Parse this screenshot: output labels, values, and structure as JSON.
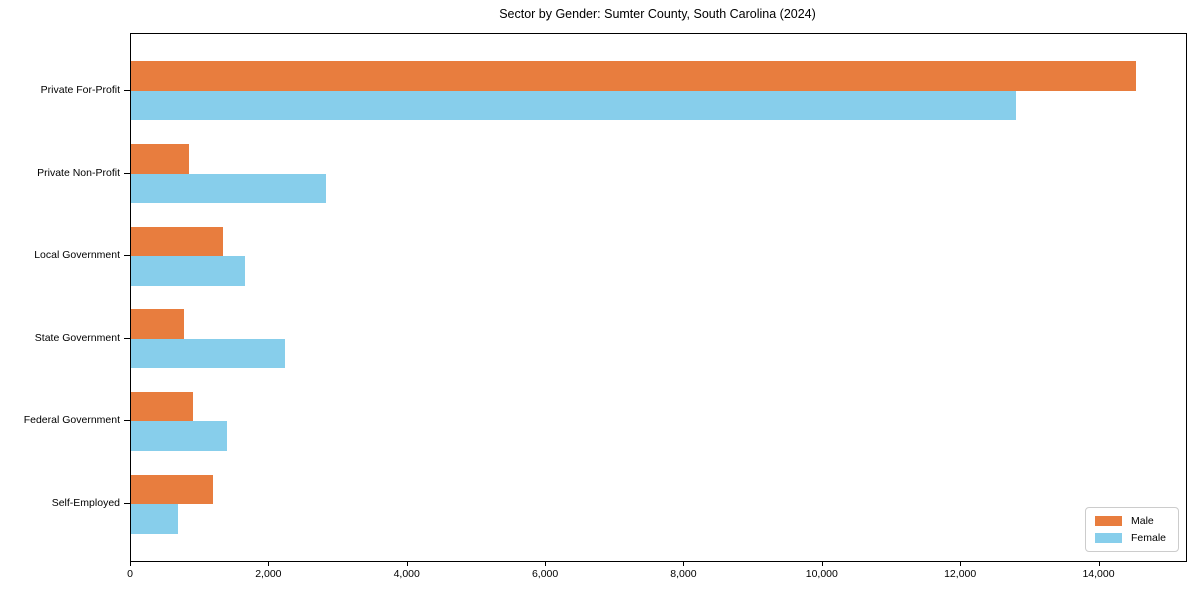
{
  "chart_data": {
    "type": "bar",
    "orientation": "horizontal",
    "title": "Sector by Gender: Sumter County, South Carolina (2024)",
    "categories": [
      "Private For-Profit",
      "Private Non-Profit",
      "Local Government",
      "State Government",
      "Federal Government",
      "Self-Employed"
    ],
    "series": [
      {
        "name": "Male",
        "color": "#e87d3e",
        "values": [
          14530,
          840,
          1330,
          760,
          890,
          1190
        ]
      },
      {
        "name": "Female",
        "color": "#87ceeb",
        "values": [
          12790,
          2820,
          1640,
          2220,
          1390,
          675
        ]
      }
    ],
    "xlabel": "",
    "ylabel": "",
    "xlim": [
      0,
      15250
    ],
    "xticks": [
      0,
      2000,
      4000,
      6000,
      8000,
      10000,
      12000,
      14000
    ],
    "xtick_labels": [
      "0",
      "2,000",
      "4,000",
      "6,000",
      "8,000",
      "10,000",
      "12,000",
      "14,000"
    ],
    "grid": false,
    "legend_position": "lower right",
    "axes": {
      "spine_color": "#000000",
      "text_color": "#000000",
      "background": "#ffffff"
    }
  }
}
